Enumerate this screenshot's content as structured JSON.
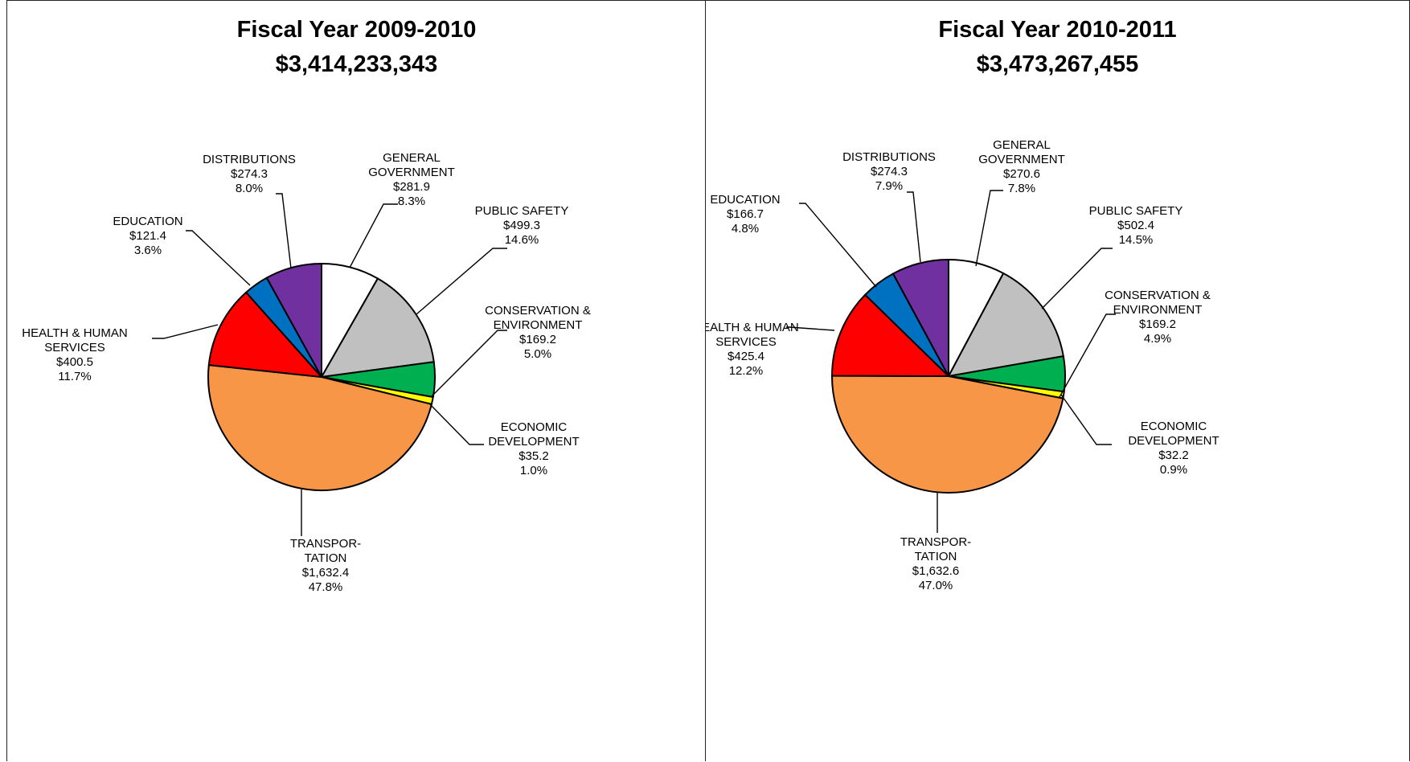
{
  "chart_data": [
    {
      "type": "pie",
      "title": "Fiscal Year 2009-2010",
      "subtitle": "$3,414,233,343",
      "slices": [
        {
          "label_lines": [
            "GENERAL",
            "GOVERNMENT"
          ],
          "value_text": "$281.9",
          "pct_text": "8.3%",
          "value": 281.9,
          "color": "#ffffff"
        },
        {
          "label_lines": [
            "PUBLIC SAFETY"
          ],
          "value_text": "$499.3",
          "pct_text": "14.6%",
          "value": 499.3,
          "color": "#c0c0c0"
        },
        {
          "label_lines": [
            "CONSERVATION &",
            "ENVIRONMENT"
          ],
          "value_text": "$169.2",
          "pct_text": "5.0%",
          "value": 169.2,
          "color": "#00b050"
        },
        {
          "label_lines": [
            "ECONOMIC",
            "DEVELOPMENT"
          ],
          "value_text": "$35.2",
          "pct_text": "1.0%",
          "value": 35.2,
          "color": "#ffff00"
        },
        {
          "label_lines": [
            "TRANSPOR-",
            "TATION"
          ],
          "value_text": "$1,632.4",
          "pct_text": "47.8%",
          "value": 1632.4,
          "color": "#f79646"
        },
        {
          "label_lines": [
            "HEALTH & HUMAN",
            "SERVICES"
          ],
          "value_text": "$400.5",
          "pct_text": "11.7%",
          "value": 400.5,
          "color": "#ff0000"
        },
        {
          "label_lines": [
            "EDUCATION"
          ],
          "value_text": "$121.4",
          "pct_text": "3.6%",
          "value": 121.4,
          "color": "#0070c0"
        },
        {
          "label_lines": [
            "DISTRIBUTIONS"
          ],
          "value_text": "$274.3",
          "pct_text": "8.0%",
          "value": 274.3,
          "color": "#7030a0"
        }
      ]
    },
    {
      "type": "pie",
      "title": "Fiscal Year 2010-2011",
      "subtitle": "$3,473,267,455",
      "slices": [
        {
          "label_lines": [
            "GENERAL",
            "GOVERNMENT"
          ],
          "value_text": "$270.6",
          "pct_text": "7.8%",
          "value": 270.6,
          "color": "#ffffff"
        },
        {
          "label_lines": [
            "PUBLIC SAFETY"
          ],
          "value_text": "$502.4",
          "pct_text": "14.5%",
          "value": 502.4,
          "color": "#c0c0c0"
        },
        {
          "label_lines": [
            "CONSERVATION &",
            "ENVIRONMENT"
          ],
          "value_text": "$169.2",
          "pct_text": "4.9%",
          "value": 169.2,
          "color": "#00b050"
        },
        {
          "label_lines": [
            "ECONOMIC",
            "DEVELOPMENT"
          ],
          "value_text": "$32.2",
          "pct_text": "0.9%",
          "value": 32.2,
          "color": "#ffff00"
        },
        {
          "label_lines": [
            "TRANSPOR-",
            "TATION"
          ],
          "value_text": "$1,632.6",
          "pct_text": "47.0%",
          "value": 1632.6,
          "color": "#f79646"
        },
        {
          "label_lines": [
            "HEALTH & HUMAN",
            "SERVICES"
          ],
          "value_text": "$425.4",
          "pct_text": "12.2%",
          "value": 425.4,
          "color": "#ff0000"
        },
        {
          "label_lines": [
            "EDUCATION"
          ],
          "value_text": "$166.7",
          "pct_text": "4.8%",
          "value": 166.7,
          "color": "#0070c0"
        },
        {
          "label_lines": [
            "DISTRIBUTIONS"
          ],
          "value_text": "$274.3",
          "pct_text": "7.9%",
          "value": 274.3,
          "color": "#7030a0"
        }
      ]
    }
  ]
}
